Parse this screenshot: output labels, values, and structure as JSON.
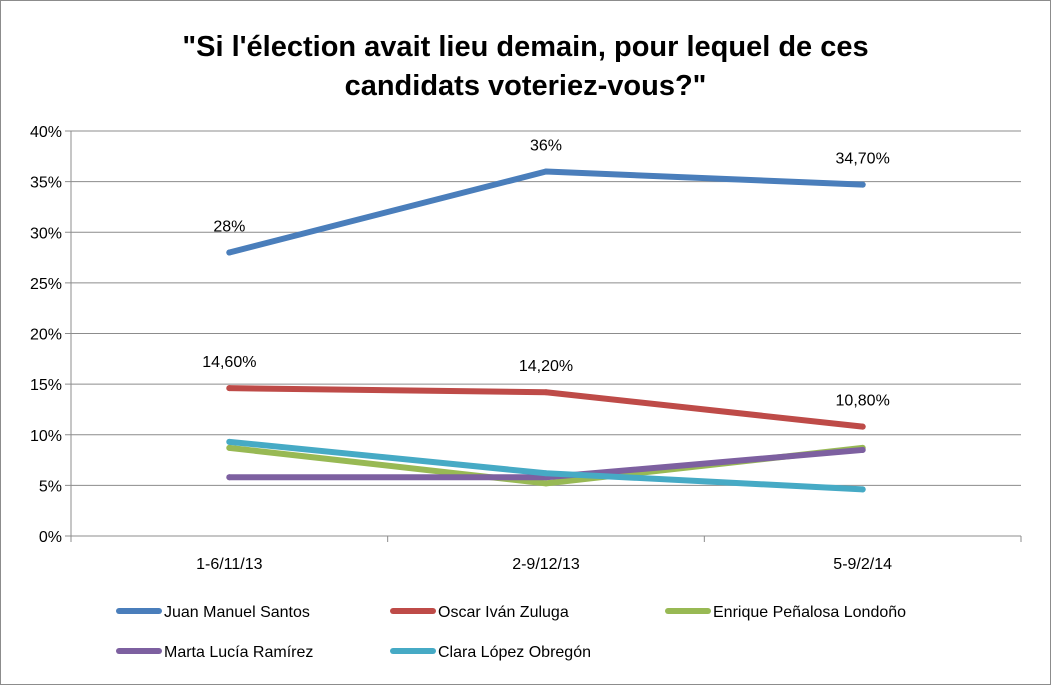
{
  "chart_data": {
    "type": "line",
    "title": "\"Si l'élection avait lieu demain, pour lequel de ces",
    "title_line2": "candidats voteriez-vous?\"",
    "categories": [
      "1-6/11/13",
      "2-9/12/13",
      "5-9/2/14"
    ],
    "ylim": [
      0,
      40
    ],
    "yticks": [
      0,
      5,
      10,
      15,
      20,
      25,
      30,
      35,
      40
    ],
    "ytick_labels": [
      "0%",
      "5%",
      "10%",
      "15%",
      "20%",
      "25%",
      "30%",
      "35%",
      "40%"
    ],
    "grid": true,
    "legend_position": "bottom",
    "series": [
      {
        "name": "Juan Manuel Santos",
        "color": "#4a7ebb",
        "values": [
          28,
          36,
          34.7
        ],
        "labels": [
          "28%",
          "36%",
          "34,70%"
        ]
      },
      {
        "name": "Oscar Iván Zuluga",
        "color": "#be4b48",
        "values": [
          14.6,
          14.2,
          10.8
        ],
        "labels": [
          "14,60%",
          "14,20%",
          "10,80%"
        ]
      },
      {
        "name": "Enrique Peñalosa Londoño",
        "color": "#98b954",
        "values": [
          8.7,
          5.2,
          8.7
        ],
        "labels": []
      },
      {
        "name": "Marta Lucía Ramírez",
        "color": "#7d60a0",
        "values": [
          5.8,
          5.8,
          8.5
        ],
        "labels": []
      },
      {
        "name": "Clara López Obregón",
        "color": "#46aac5",
        "values": [
          9.3,
          6.2,
          4.6
        ],
        "labels": []
      }
    ]
  }
}
